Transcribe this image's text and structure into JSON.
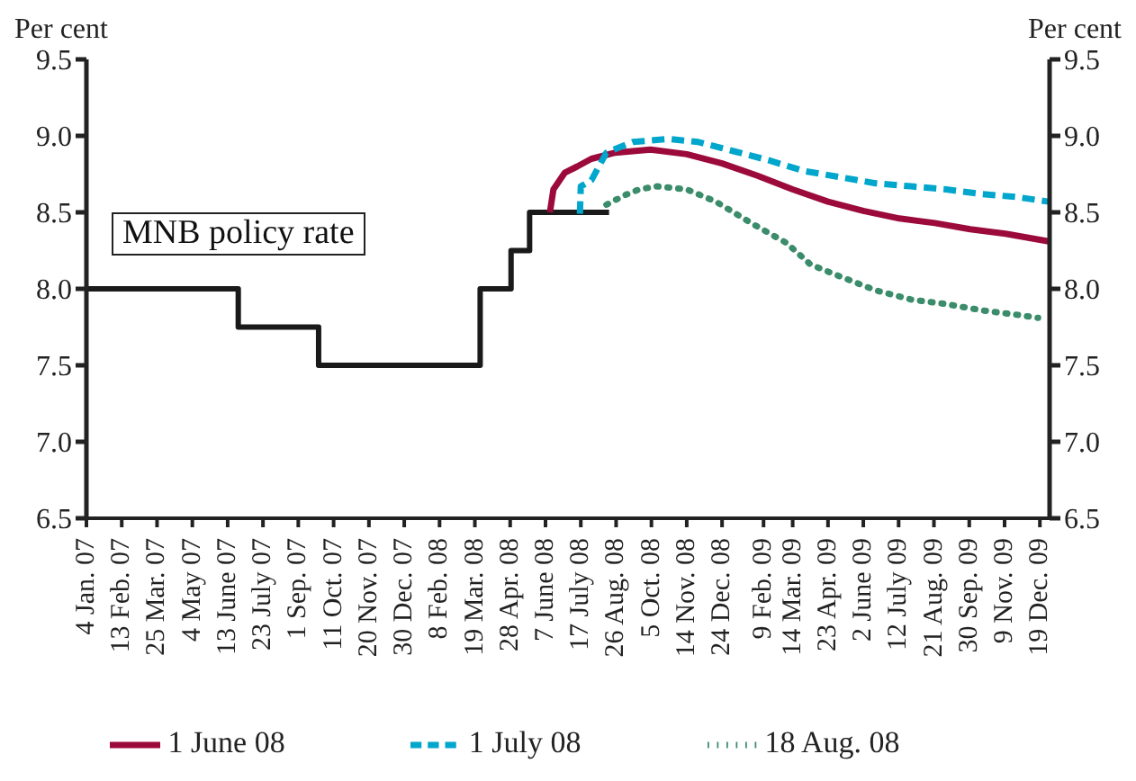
{
  "chart_data": {
    "type": "line",
    "ylabel": "Per cent",
    "y2label": "Per cent",
    "xlim": [
      "2007-01-04",
      "2009-12-30"
    ],
    "xticks": [
      {
        "value": "2007-01-04",
        "label": "4 Jan. 07"
      },
      {
        "value": "2007-02-13",
        "label": "13 Feb. 07"
      },
      {
        "value": "2007-03-25",
        "label": "25 Mar. 07"
      },
      {
        "value": "2007-05-04",
        "label": "4 May 07"
      },
      {
        "value": "2007-06-13",
        "label": "13 June 07"
      },
      {
        "value": "2007-07-23",
        "label": "23 July 07"
      },
      {
        "value": "2007-09-01",
        "label": "1 Sep. 07"
      },
      {
        "value": "2007-10-11",
        "label": "11 Oct. 07"
      },
      {
        "value": "2007-11-20",
        "label": "20 Nov. 07"
      },
      {
        "value": "2007-12-30",
        "label": "30 Dec. 07"
      },
      {
        "value": "2008-02-08",
        "label": "8 Feb. 08"
      },
      {
        "value": "2008-03-19",
        "label": "19 Mar. 08"
      },
      {
        "value": "2008-04-28",
        "label": "28 Apr. 08"
      },
      {
        "value": "2008-06-07",
        "label": "7 June 08"
      },
      {
        "value": "2008-07-17",
        "label": "17 July 08"
      },
      {
        "value": "2008-08-26",
        "label": "26 Aug. 08"
      },
      {
        "value": "2008-10-05",
        "label": "5 Oct. 08"
      },
      {
        "value": "2008-11-14",
        "label": "14 Nov. 08"
      },
      {
        "value": "2008-12-24",
        "label": "24 Dec. 08"
      },
      {
        "value": "2009-02-09",
        "label": "9 Feb. 09"
      },
      {
        "value": "2009-03-14",
        "label": "14 Mar. 09"
      },
      {
        "value": "2009-04-23",
        "label": "23 Apr. 09"
      },
      {
        "value": "2009-06-02",
        "label": "2 June 09"
      },
      {
        "value": "2009-07-12",
        "label": "12 July 09"
      },
      {
        "value": "2009-08-21",
        "label": "21 Aug. 09"
      },
      {
        "value": "2009-09-30",
        "label": "30 Sep. 09"
      },
      {
        "value": "2009-11-09",
        "label": "9 Nov. 09"
      },
      {
        "value": "2009-12-19",
        "label": "19 Dec. 09"
      }
    ],
    "ylim": [
      6.5,
      9.5
    ],
    "yticks": [
      6.5,
      {
        "value": 7,
        "label": "7.0"
      },
      7.5,
      {
        "value": 8,
        "label": "8.0"
      },
      8.5,
      {
        "value": 9,
        "label": "9.0"
      },
      9.5
    ],
    "y2lim": [
      6.5,
      9.5
    ],
    "y2ticks": [
      6.5,
      {
        "value": 7,
        "label": "7.0"
      },
      7.5,
      {
        "value": 8,
        "label": "8.0"
      },
      8.5,
      {
        "value": 9,
        "label": "9.0"
      },
      9.5
    ],
    "legend": "bottom",
    "series": [
      {
        "name": "MNB policy rate",
        "type": "step",
        "color": "#1a1a1a",
        "line_style": "solid",
        "x": [
          "2007-01-04",
          "2007-06-25",
          "2007-09-24",
          "2008-03-25",
          "2008-04-29",
          "2008-05-20",
          "2008-08-18"
        ],
        "values": [
          8.0,
          7.75,
          7.5,
          8.0,
          8.25,
          8.5,
          8.5
        ]
      },
      {
        "name": "1 June 08",
        "color": "#9b0a3a",
        "line_style": "solid",
        "x": [
          "2008-06-12",
          "2008-06-16",
          "2008-06-29",
          "2008-07-13",
          "2008-07-29",
          "2008-08-25",
          "2008-10-04",
          "2008-11-14",
          "2008-12-24",
          "2009-02-02",
          "2009-03-14",
          "2009-04-23",
          "2009-06-02",
          "2009-07-13",
          "2009-08-22",
          "2009-10-01",
          "2009-11-10",
          "2009-12-29"
        ],
        "values": [
          8.5,
          8.65,
          8.76,
          8.8,
          8.85,
          8.89,
          8.91,
          8.88,
          8.82,
          8.74,
          8.65,
          8.57,
          8.51,
          8.46,
          8.43,
          8.39,
          8.36,
          8.31
        ]
      },
      {
        "name": "1 July 08",
        "color": "#00a6cc",
        "line_style": "dashed",
        "x": [
          "2008-07-16",
          "2008-07-17",
          "2008-07-29",
          "2008-08-15",
          "2008-09-14",
          "2008-10-25",
          "2008-11-27",
          "2009-01-06",
          "2009-02-15",
          "2009-03-27",
          "2009-05-07",
          "2009-06-16",
          "2009-07-26",
          "2009-09-04",
          "2009-10-14",
          "2009-11-23",
          "2009-12-29"
        ],
        "values": [
          8.49,
          8.67,
          8.71,
          8.89,
          8.96,
          8.98,
          8.96,
          8.9,
          8.84,
          8.77,
          8.73,
          8.69,
          8.67,
          8.65,
          8.62,
          8.6,
          8.57
        ]
      },
      {
        "name": "18 Aug. 08",
        "color": "#3a8c6a",
        "line_style": "dotted",
        "x": [
          "2008-08-15",
          "2008-09-04",
          "2008-09-21",
          "2008-10-11",
          "2008-11-14",
          "2008-12-17",
          "2009-01-26",
          "2009-03-07",
          "2009-04-03",
          "2009-05-07",
          "2009-06-16",
          "2009-07-26",
          "2009-09-04",
          "2009-10-14",
          "2009-11-23",
          "2009-12-17"
        ],
        "values": [
          8.55,
          8.61,
          8.65,
          8.67,
          8.65,
          8.57,
          8.43,
          8.3,
          8.16,
          8.08,
          7.99,
          7.93,
          7.9,
          7.86,
          7.83,
          7.81
        ]
      }
    ]
  }
}
